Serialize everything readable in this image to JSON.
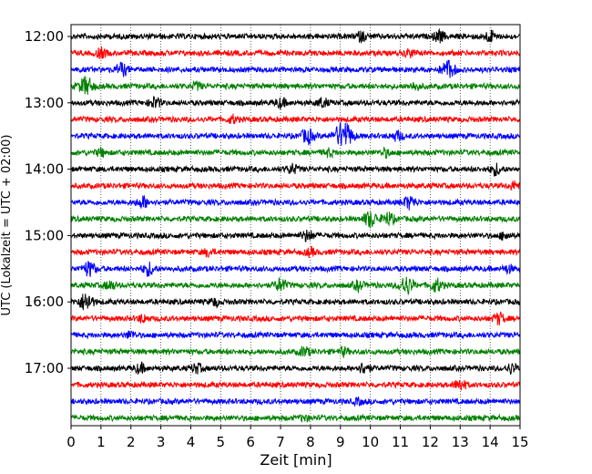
{
  "chart_data": {
    "type": "line",
    "title": "",
    "xlabel": "Zeit  [min]",
    "ylabel": "UTC (Lokalzeit = UTC + 02:00)",
    "xlim": [
      0,
      15
    ],
    "x_ticks": [
      0,
      1,
      2,
      3,
      4,
      5,
      6,
      7,
      8,
      9,
      10,
      11,
      12,
      13,
      14,
      15
    ],
    "y_tick_labels": [
      "12:00",
      "13:00",
      "14:00",
      "15:00",
      "16:00",
      "17:00"
    ],
    "grid": "vertical dotted lines at each minute",
    "legend": "none",
    "colors_cycle": [
      "#000000",
      "#ff0000",
      "#0000ff",
      "#008000"
    ],
    "traces": [
      {
        "start": "12:00",
        "color": "#000000",
        "events": [
          {
            "t": 9.7,
            "a": 0.5
          },
          {
            "t": 12.3,
            "a": 0.6
          },
          {
            "t": 14.0,
            "a": 0.6
          }
        ]
      },
      {
        "start": "12:15",
        "color": "#ff0000",
        "events": [
          {
            "t": 1.0,
            "a": 0.5
          },
          {
            "t": 11.3,
            "a": 0.4
          }
        ]
      },
      {
        "start": "12:30",
        "color": "#0000ff",
        "events": [
          {
            "t": 1.7,
            "a": 0.7
          },
          {
            "t": 12.6,
            "a": 1.0
          }
        ]
      },
      {
        "start": "12:45",
        "color": "#008000",
        "events": [
          {
            "t": 0.5,
            "a": 1.0
          },
          {
            "t": 4.2,
            "a": 0.4
          },
          {
            "t": 11.5,
            "a": 0.4
          }
        ]
      },
      {
        "start": "13:00",
        "color": "#000000",
        "events": [
          {
            "t": 2.8,
            "a": 0.6
          },
          {
            "t": 7.0,
            "a": 0.5
          },
          {
            "t": 8.4,
            "a": 0.5
          }
        ]
      },
      {
        "start": "13:15",
        "color": "#ff0000",
        "events": [
          {
            "t": 5.4,
            "a": 0.4
          }
        ]
      },
      {
        "start": "13:30",
        "color": "#0000ff",
        "events": [
          {
            "t": 7.9,
            "a": 0.8
          },
          {
            "t": 9.1,
            "a": 1.6
          },
          {
            "t": 10.9,
            "a": 0.5
          }
        ]
      },
      {
        "start": "13:45",
        "color": "#008000",
        "events": [
          {
            "t": 1.0,
            "a": 0.4
          },
          {
            "t": 8.6,
            "a": 0.4
          },
          {
            "t": 10.5,
            "a": 0.4
          }
        ]
      },
      {
        "start": "14:00",
        "color": "#000000",
        "events": [
          {
            "t": 7.4,
            "a": 0.5
          },
          {
            "t": 14.2,
            "a": 0.6
          }
        ]
      },
      {
        "start": "14:15",
        "color": "#ff0000",
        "events": [
          {
            "t": 14.8,
            "a": 0.4
          }
        ]
      },
      {
        "start": "14:30",
        "color": "#0000ff",
        "events": [
          {
            "t": 2.4,
            "a": 0.6
          },
          {
            "t": 11.3,
            "a": 0.7
          }
        ]
      },
      {
        "start": "14:45",
        "color": "#008000",
        "events": [
          {
            "t": 10.0,
            "a": 0.9
          },
          {
            "t": 10.6,
            "a": 0.7
          }
        ]
      },
      {
        "start": "15:00",
        "color": "#000000",
        "events": [
          {
            "t": 7.9,
            "a": 0.6
          },
          {
            "t": 14.5,
            "a": 0.4
          }
        ]
      },
      {
        "start": "15:15",
        "color": "#ff0000",
        "events": [
          {
            "t": 4.6,
            "a": 0.4
          },
          {
            "t": 8.0,
            "a": 0.4
          }
        ]
      },
      {
        "start": "15:30",
        "color": "#0000ff",
        "events": [
          {
            "t": 0.6,
            "a": 0.8
          },
          {
            "t": 2.6,
            "a": 0.7
          },
          {
            "t": 14.6,
            "a": 0.4
          }
        ]
      },
      {
        "start": "15:45",
        "color": "#008000",
        "events": [
          {
            "t": 1.3,
            "a": 0.5
          },
          {
            "t": 7.0,
            "a": 0.7
          },
          {
            "t": 9.6,
            "a": 0.5
          },
          {
            "t": 11.2,
            "a": 1.0
          },
          {
            "t": 12.2,
            "a": 0.7
          }
        ]
      },
      {
        "start": "16:00",
        "color": "#000000",
        "events": [
          {
            "t": 0.5,
            "a": 1.0
          },
          {
            "t": 4.8,
            "a": 0.4
          }
        ]
      },
      {
        "start": "16:15",
        "color": "#ff0000",
        "events": [
          {
            "t": 2.4,
            "a": 0.4
          },
          {
            "t": 14.3,
            "a": 0.6
          }
        ]
      },
      {
        "start": "16:30",
        "color": "#0000ff",
        "events": [
          {
            "t": 2.0,
            "a": 0.4
          }
        ]
      },
      {
        "start": "16:45",
        "color": "#008000",
        "events": [
          {
            "t": 7.8,
            "a": 0.5
          },
          {
            "t": 9.1,
            "a": 0.4
          }
        ]
      },
      {
        "start": "17:00",
        "color": "#000000",
        "events": [
          {
            "t": 2.3,
            "a": 0.5
          },
          {
            "t": 4.2,
            "a": 0.5
          },
          {
            "t": 9.8,
            "a": 0.6
          },
          {
            "t": 14.7,
            "a": 0.5
          }
        ]
      },
      {
        "start": "17:15",
        "color": "#ff0000",
        "events": [
          {
            "t": 13.0,
            "a": 0.6
          }
        ]
      },
      {
        "start": "17:30",
        "color": "#0000ff",
        "events": [
          {
            "t": 9.6,
            "a": 0.3
          }
        ]
      },
      {
        "start": "17:45",
        "color": "#008000",
        "events": [
          {
            "t": 7.8,
            "a": 0.3
          }
        ]
      }
    ]
  }
}
